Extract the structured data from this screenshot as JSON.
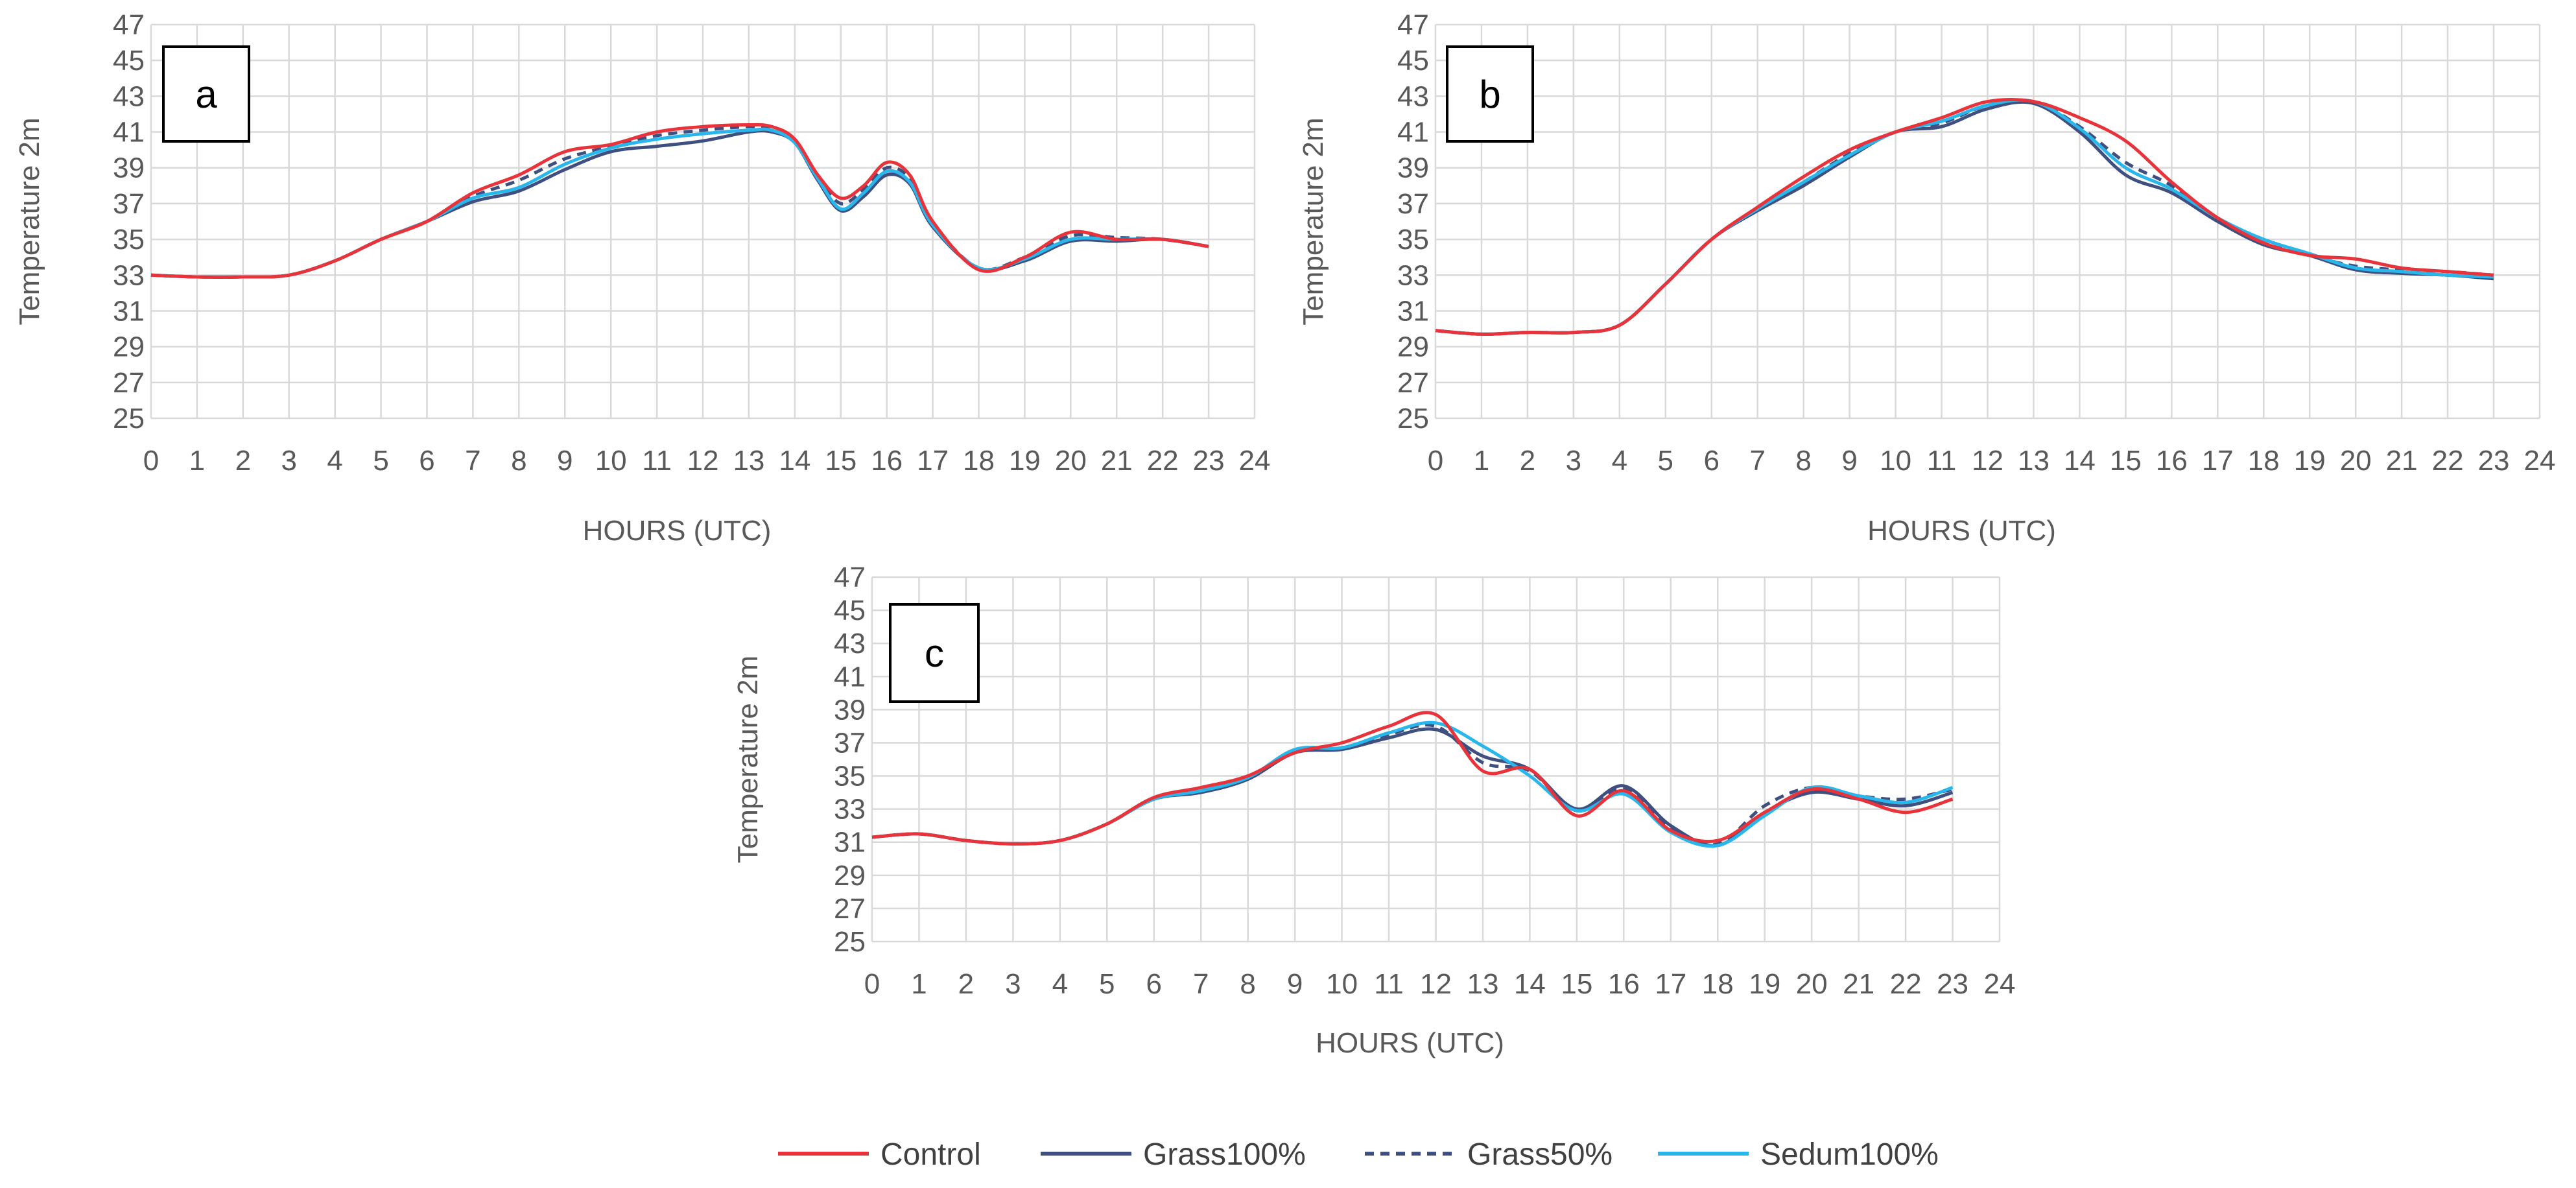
{
  "legend": {
    "items": [
      {
        "name": "Control",
        "color": "#e8333b",
        "dash": false
      },
      {
        "name": "Grass100%",
        "color": "#3f4f7f",
        "dash": false
      },
      {
        "name": "Grass50%",
        "color": "#3f4f7f",
        "dash": true
      },
      {
        "name": "Sedum100%",
        "color": "#29b6ea",
        "dash": false
      }
    ]
  },
  "chart_data": [
    {
      "type": "line",
      "panel": "a",
      "xlabel": "HOURS (UTC)",
      "ylabel": "Temperature  2m",
      "xlim": [
        0,
        24
      ],
      "ylim": [
        25,
        47
      ],
      "x_ticks": [
        0,
        1,
        2,
        3,
        4,
        5,
        6,
        7,
        8,
        9,
        10,
        11,
        12,
        13,
        14,
        15,
        16,
        17,
        18,
        19,
        20,
        21,
        22,
        23,
        24
      ],
      "y_ticks": [
        25,
        27,
        29,
        31,
        33,
        35,
        37,
        39,
        41,
        43,
        45,
        47
      ],
      "x": [
        0,
        1,
        2,
        3,
        4,
        5,
        6,
        7,
        8,
        9,
        10,
        11,
        12,
        13,
        13.5,
        14,
        14.5,
        15,
        15.5,
        16,
        16.5,
        17,
        18,
        19,
        20,
        21,
        22,
        23
      ],
      "series": [
        {
          "name": "Control",
          "values": [
            33.0,
            32.9,
            32.9,
            33.0,
            33.8,
            35.0,
            36.0,
            37.6,
            38.6,
            39.9,
            40.3,
            41.0,
            41.3,
            41.4,
            41.3,
            40.6,
            38.6,
            37.3,
            38.0,
            39.3,
            38.6,
            36.0,
            33.3,
            34.0,
            35.4,
            35.0,
            35.0,
            34.6
          ]
        },
        {
          "name": "Grass100%",
          "values": [
            33.0,
            32.9,
            32.9,
            33.0,
            33.8,
            35.0,
            36.0,
            37.1,
            37.7,
            38.9,
            39.9,
            40.2,
            40.5,
            41.0,
            41.0,
            40.4,
            38.3,
            36.6,
            37.4,
            38.6,
            38.1,
            35.7,
            33.4,
            33.8,
            34.9,
            34.9,
            35.0,
            34.6
          ]
        },
        {
          "name": "Grass50%",
          "values": [
            33.0,
            32.9,
            32.9,
            33.0,
            33.8,
            35.0,
            36.0,
            37.4,
            38.3,
            39.5,
            40.2,
            40.8,
            41.1,
            41.3,
            41.2,
            40.5,
            38.5,
            37.0,
            37.8,
            39.0,
            38.4,
            35.9,
            33.4,
            34.0,
            35.2,
            35.1,
            35.0,
            34.6
          ]
        },
        {
          "name": "Sedum100%",
          "values": [
            33.0,
            32.9,
            32.9,
            33.0,
            33.8,
            35.0,
            36.0,
            37.3,
            37.9,
            39.2,
            40.1,
            40.6,
            40.9,
            41.1,
            41.1,
            40.4,
            38.4,
            36.7,
            37.6,
            38.8,
            38.2,
            35.8,
            33.4,
            33.9,
            35.0,
            35.0,
            35.0,
            34.6
          ]
        }
      ]
    },
    {
      "type": "line",
      "panel": "b",
      "xlabel": "HOURS (UTC)",
      "ylabel": "Temperature  2m",
      "xlim": [
        0,
        24
      ],
      "ylim": [
        25,
        47
      ],
      "x_ticks": [
        0,
        1,
        2,
        3,
        4,
        5,
        6,
        7,
        8,
        9,
        10,
        11,
        12,
        13,
        14,
        15,
        16,
        17,
        18,
        19,
        20,
        21,
        22,
        23,
        24
      ],
      "y_ticks": [
        25,
        27,
        29,
        31,
        33,
        35,
        37,
        39,
        41,
        43,
        45,
        47
      ],
      "x": [
        0,
        1,
        2,
        3,
        4,
        5,
        6,
        7,
        8,
        9,
        10,
        11,
        12,
        13,
        14,
        15,
        16,
        17,
        18,
        19,
        20,
        21,
        22,
        23
      ],
      "series": [
        {
          "name": "Control",
          "values": [
            29.9,
            29.7,
            29.8,
            29.8,
            30.2,
            32.5,
            35.0,
            36.8,
            38.5,
            40.0,
            41.0,
            41.8,
            42.7,
            42.7,
            41.8,
            40.5,
            38.2,
            36.2,
            34.8,
            34.1,
            33.9,
            33.4,
            33.2,
            33.0
          ]
        },
        {
          "name": "Grass100%",
          "values": [
            29.9,
            29.7,
            29.8,
            29.8,
            30.2,
            32.5,
            35.0,
            36.6,
            38.0,
            39.6,
            41.0,
            41.3,
            42.3,
            42.6,
            41.0,
            38.6,
            37.6,
            36.0,
            34.7,
            34.1,
            33.3,
            33.1,
            33.0,
            32.8
          ]
        },
        {
          "name": "Grass50%",
          "values": [
            29.9,
            29.7,
            29.8,
            29.8,
            30.2,
            32.5,
            35.0,
            36.7,
            38.2,
            39.8,
            41.0,
            41.5,
            42.5,
            42.7,
            41.3,
            39.3,
            38.0,
            36.1,
            34.8,
            34.1,
            33.5,
            33.3,
            33.2,
            33.0
          ]
        },
        {
          "name": "Sedum100%",
          "values": [
            29.9,
            29.7,
            29.8,
            29.8,
            30.2,
            32.5,
            35.0,
            36.7,
            38.2,
            39.7,
            41.0,
            41.6,
            42.5,
            42.7,
            41.2,
            39.0,
            37.8,
            36.2,
            35.0,
            34.2,
            33.4,
            33.2,
            33.0,
            32.9
          ]
        }
      ]
    },
    {
      "type": "line",
      "panel": "c",
      "xlabel": "HOURS (UTC)",
      "ylabel": "Temperature  2m",
      "xlim": [
        0,
        24
      ],
      "ylim": [
        25,
        47
      ],
      "x_ticks": [
        0,
        1,
        2,
        3,
        4,
        5,
        6,
        7,
        8,
        9,
        10,
        11,
        12,
        13,
        14,
        15,
        16,
        17,
        18,
        19,
        20,
        21,
        22,
        23,
        24
      ],
      "y_ticks": [
        25,
        27,
        29,
        31,
        33,
        35,
        37,
        39,
        41,
        43,
        45,
        47
      ],
      "x": [
        0,
        1,
        2,
        3,
        4,
        5,
        6,
        7,
        8,
        9,
        10,
        11,
        12,
        13,
        14,
        15,
        16,
        17,
        18,
        19,
        20,
        21,
        22,
        23
      ],
      "series": [
        {
          "name": "Control",
          "values": [
            31.3,
            31.5,
            31.1,
            30.9,
            31.1,
            32.1,
            33.7,
            34.3,
            35.0,
            36.4,
            37.0,
            38.0,
            38.7,
            35.3,
            35.4,
            32.6,
            34.1,
            31.7,
            31.1,
            32.8,
            34.2,
            33.6,
            32.8,
            33.6
          ]
        },
        {
          "name": "Grass100%",
          "values": [
            31.3,
            31.5,
            31.1,
            30.9,
            31.1,
            32.1,
            33.6,
            34.0,
            34.8,
            36.4,
            36.6,
            37.3,
            37.8,
            36.2,
            35.4,
            33.0,
            34.4,
            32.0,
            30.8,
            32.8,
            34.0,
            33.6,
            33.2,
            34.0
          ]
        },
        {
          "name": "Grass50%",
          "values": [
            31.3,
            31.5,
            31.1,
            30.9,
            31.1,
            32.1,
            33.6,
            34.1,
            34.9,
            36.4,
            36.7,
            37.5,
            38.0,
            35.8,
            35.3,
            32.9,
            34.2,
            31.8,
            30.9,
            33.2,
            34.3,
            33.8,
            33.6,
            34.2
          ]
        },
        {
          "name": "Sedum100%",
          "values": [
            31.3,
            31.5,
            31.1,
            30.9,
            31.1,
            32.1,
            33.6,
            34.1,
            34.9,
            36.6,
            36.7,
            37.6,
            38.2,
            36.8,
            35.0,
            32.9,
            33.9,
            31.6,
            30.8,
            32.6,
            34.3,
            33.8,
            33.4,
            34.3
          ]
        }
      ]
    }
  ]
}
